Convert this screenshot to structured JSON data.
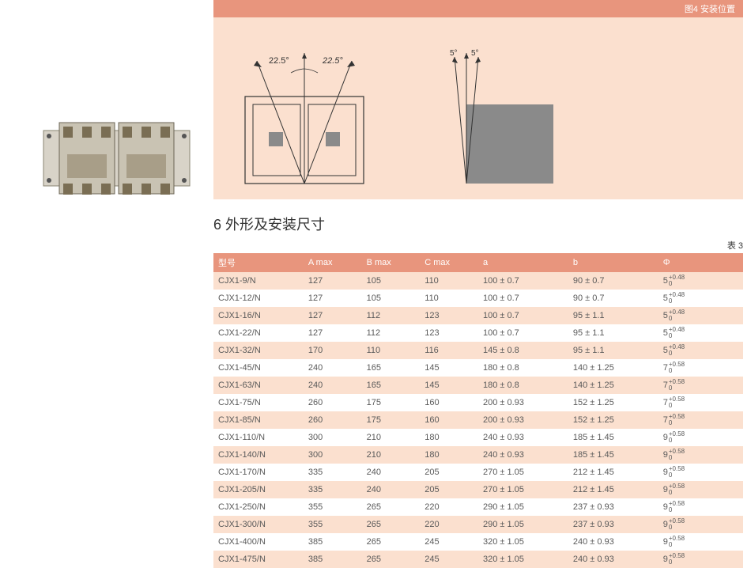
{
  "diagram": {
    "header_label": "图4 安装位置",
    "bg_color": "#fbe0cf",
    "header_bg": "#e8957d",
    "left_angle_label_1": "22.5°",
    "left_angle_label_2": "22.5°",
    "right_angle_label_1": "5°",
    "right_angle_label_2": "5°"
  },
  "section": {
    "title": "6 外形及安装尺寸",
    "table_number": "表 3"
  },
  "table": {
    "header_bg": "#e8957d",
    "odd_bg": "#fbe0cf",
    "even_bg": "#ffffff",
    "columns": [
      "型号",
      "A max",
      "B max",
      "C max",
      "a",
      "b",
      "Φ"
    ],
    "rows": [
      {
        "model": "CJX1-9/N",
        "amax": "127",
        "bmax": "105",
        "cmax": "110",
        "a": "100 ± 0.7",
        "b": "90 ± 0.7",
        "phi_base": "5",
        "phi_top": "+0.48",
        "phi_bot": "0"
      },
      {
        "model": "CJX1-12/N",
        "amax": "127",
        "bmax": "105",
        "cmax": "110",
        "a": "100 ± 0.7",
        "b": "90 ± 0.7",
        "phi_base": "5",
        "phi_top": "+0.48",
        "phi_bot": "0"
      },
      {
        "model": "CJX1-16/N",
        "amax": "127",
        "bmax": "112",
        "cmax": "123",
        "a": "100 ± 0.7",
        "b": "95 ± 1.1",
        "phi_base": "5",
        "phi_top": "+0.48",
        "phi_bot": "0"
      },
      {
        "model": "CJX1-22/N",
        "amax": "127",
        "bmax": "112",
        "cmax": "123",
        "a": "100 ± 0.7",
        "b": "95 ± 1.1",
        "phi_base": "5",
        "phi_top": "+0.48",
        "phi_bot": "0"
      },
      {
        "model": "CJX1-32/N",
        "amax": "170",
        "bmax": "110",
        "cmax": "116",
        "a": "145 ± 0.8",
        "b": "95 ± 1.1",
        "phi_base": "5",
        "phi_top": "+0.48",
        "phi_bot": "0"
      },
      {
        "model": "CJX1-45/N",
        "amax": "240",
        "bmax": "165",
        "cmax": "145",
        "a": "180 ± 0.8",
        "b": "140 ± 1.25",
        "phi_base": "7",
        "phi_top": "+0.58",
        "phi_bot": "0"
      },
      {
        "model": "CJX1-63/N",
        "amax": "240",
        "bmax": "165",
        "cmax": "145",
        "a": "180 ± 0.8",
        "b": "140 ± 1.25",
        "phi_base": "7",
        "phi_top": "+0.58",
        "phi_bot": "0"
      },
      {
        "model": "CJX1-75/N",
        "amax": "260",
        "bmax": "175",
        "cmax": "160",
        "a": "200 ± 0.93",
        "b": "152 ± 1.25",
        "phi_base": "7",
        "phi_top": "+0.58",
        "phi_bot": "0"
      },
      {
        "model": "CJX1-85/N",
        "amax": "260",
        "bmax": "175",
        "cmax": "160",
        "a": "200 ± 0.93",
        "b": "152 ± 1.25",
        "phi_base": "7",
        "phi_top": "+0.58",
        "phi_bot": "0"
      },
      {
        "model": "CJX1-110/N",
        "amax": "300",
        "bmax": "210",
        "cmax": "180",
        "a": "240 ± 0.93",
        "b": "185 ± 1.45",
        "phi_base": "9",
        "phi_top": "+0.58",
        "phi_bot": "0"
      },
      {
        "model": "CJX1-140/N",
        "amax": "300",
        "bmax": "210",
        "cmax": "180",
        "a": "240 ± 0.93",
        "b": "185 ± 1.45",
        "phi_base": "9",
        "phi_top": "+0.58",
        "phi_bot": "0"
      },
      {
        "model": "CJX1-170/N",
        "amax": "335",
        "bmax": "240",
        "cmax": "205",
        "a": "270 ± 1.05",
        "b": "212 ± 1.45",
        "phi_base": "9",
        "phi_top": "+0.58",
        "phi_bot": "0"
      },
      {
        "model": "CJX1-205/N",
        "amax": "335",
        "bmax": "240",
        "cmax": "205",
        "a": "270 ± 1.05",
        "b": "212 ± 1.45",
        "phi_base": "9",
        "phi_top": "+0.58",
        "phi_bot": "0"
      },
      {
        "model": "CJX1-250/N",
        "amax": "355",
        "bmax": "265",
        "cmax": "220",
        "a": "290 ± 1.05",
        "b": "237 ± 0.93",
        "phi_base": "9",
        "phi_top": "+0.58",
        "phi_bot": "0"
      },
      {
        "model": "CJX1-300/N",
        "amax": "355",
        "bmax": "265",
        "cmax": "220",
        "a": "290 ± 1.05",
        "b": "237 ± 0.93",
        "phi_base": "9",
        "phi_top": "+0.58",
        "phi_bot": "0"
      },
      {
        "model": "CJX1-400/N",
        "amax": "385",
        "bmax": "265",
        "cmax": "245",
        "a": "320 ± 1.05",
        "b": "240 ± 0.93",
        "phi_base": "9",
        "phi_top": "+0.58",
        "phi_bot": "0"
      },
      {
        "model": "CJX1-475/N",
        "amax": "385",
        "bmax": "265",
        "cmax": "245",
        "a": "320 ± 1.05",
        "b": "240 ± 0.93",
        "phi_base": "9",
        "phi_top": "+0.58",
        "phi_bot": "0"
      }
    ]
  }
}
